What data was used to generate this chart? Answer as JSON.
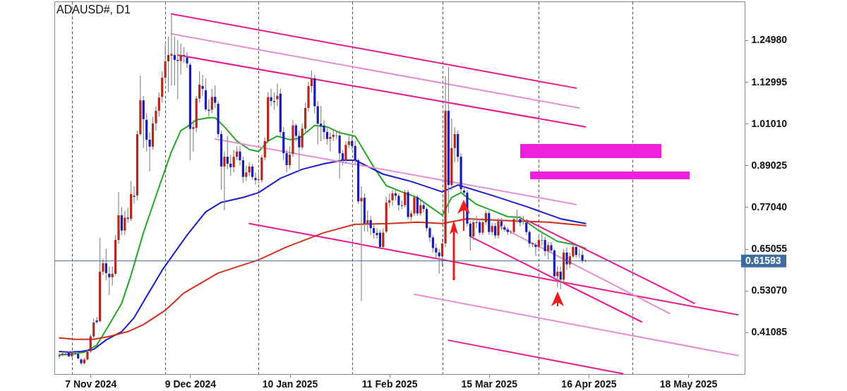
{
  "chart_data": {
    "type": "candlestick",
    "title": "ADAUSD#, D1",
    "x": [
      "2024-10-28",
      "2024-10-29",
      "2024-10-30",
      "2024-10-31",
      "2024-11-01",
      "2024-11-02",
      "2024-11-03",
      "2024-11-04",
      "2024-11-05",
      "2024-11-06",
      "2024-11-07",
      "2024-11-08",
      "2024-11-09",
      "2024-11-10",
      "2024-11-11",
      "2024-11-12",
      "2024-11-13",
      "2024-11-14",
      "2024-11-15",
      "2024-11-16",
      "2024-11-17",
      "2024-11-18",
      "2024-11-19",
      "2024-11-20",
      "2024-11-21",
      "2024-11-22",
      "2024-11-23",
      "2024-11-24",
      "2024-11-25",
      "2024-11-26",
      "2024-11-27",
      "2024-11-28",
      "2024-11-29",
      "2024-11-30",
      "2024-12-01",
      "2024-12-02",
      "2024-12-03",
      "2024-12-04",
      "2024-12-05",
      "2024-12-06",
      "2024-12-07",
      "2024-12-08",
      "2024-12-09",
      "2024-12-10",
      "2024-12-11",
      "2024-12-12",
      "2024-12-13",
      "2024-12-14",
      "2024-12-15",
      "2024-12-16",
      "2024-12-17",
      "2024-12-18",
      "2024-12-19",
      "2024-12-20",
      "2024-12-21",
      "2024-12-22",
      "2024-12-23",
      "2024-12-24",
      "2024-12-25",
      "2024-12-26",
      "2024-12-27",
      "2024-12-28",
      "2024-12-29",
      "2024-12-30",
      "2024-12-31",
      "2025-01-01",
      "2025-01-02",
      "2025-01-03",
      "2025-01-04",
      "2025-01-05",
      "2025-01-06",
      "2025-01-07",
      "2025-01-08",
      "2025-01-09",
      "2025-01-10",
      "2025-01-11",
      "2025-01-12",
      "2025-01-13",
      "2025-01-14",
      "2025-01-15",
      "2025-01-16",
      "2025-01-17",
      "2025-01-18",
      "2025-01-19",
      "2025-01-20",
      "2025-01-21",
      "2025-01-22",
      "2025-01-23",
      "2025-01-24",
      "2025-01-25",
      "2025-01-26",
      "2025-01-27",
      "2025-01-28",
      "2025-01-29",
      "2025-01-30",
      "2025-01-31",
      "2025-02-01",
      "2025-02-02",
      "2025-02-03",
      "2025-02-04",
      "2025-02-05",
      "2025-02-06",
      "2025-02-07",
      "2025-02-08",
      "2025-02-09",
      "2025-02-10",
      "2025-02-11",
      "2025-02-12",
      "2025-02-13",
      "2025-02-14",
      "2025-02-15",
      "2025-02-16",
      "2025-02-17",
      "2025-02-18",
      "2025-02-19",
      "2025-02-20",
      "2025-02-21",
      "2025-02-22",
      "2025-02-23",
      "2025-02-24",
      "2025-02-25",
      "2025-02-26",
      "2025-02-27",
      "2025-02-28",
      "2025-03-01",
      "2025-03-02",
      "2025-03-03",
      "2025-03-04",
      "2025-03-05",
      "2025-03-06",
      "2025-03-07",
      "2025-03-08",
      "2025-03-09",
      "2025-03-10",
      "2025-03-11",
      "2025-03-12",
      "2025-03-13",
      "2025-03-14",
      "2025-03-15",
      "2025-03-16",
      "2025-03-17",
      "2025-03-18",
      "2025-03-19",
      "2025-03-20",
      "2025-03-21",
      "2025-03-22",
      "2025-03-23",
      "2025-03-24",
      "2025-03-25",
      "2025-03-26",
      "2025-03-27",
      "2025-03-28",
      "2025-03-29",
      "2025-03-30",
      "2025-03-31",
      "2025-04-01",
      "2025-04-02",
      "2025-04-03",
      "2025-04-04",
      "2025-04-05",
      "2025-04-06",
      "2025-04-07",
      "2025-04-08",
      "2025-04-09",
      "2025-04-10",
      "2025-04-11",
      "2025-04-12",
      "2025-04-13",
      "2025-04-14",
      "2025-04-15"
    ],
    "ohlc": [
      [
        0.342,
        0.352,
        0.336,
        0.345
      ],
      [
        0.346,
        0.356,
        0.342,
        0.35
      ],
      [
        0.347,
        0.355,
        0.343,
        0.349
      ],
      [
        0.352,
        0.356,
        0.34,
        0.342
      ],
      [
        0.342,
        0.356,
        0.338,
        0.352
      ],
      [
        0.35,
        0.354,
        0.345,
        0.349
      ],
      [
        0.349,
        0.352,
        0.333,
        0.336
      ],
      [
        0.333,
        0.336,
        0.318,
        0.322
      ],
      [
        0.322,
        0.338,
        0.318,
        0.333
      ],
      [
        0.333,
        0.362,
        0.33,
        0.356
      ],
      [
        0.356,
        0.405,
        0.352,
        0.399
      ],
      [
        0.399,
        0.45,
        0.395,
        0.439
      ],
      [
        0.445,
        0.455,
        0.436,
        0.44
      ],
      [
        0.443,
        0.682,
        0.44,
        0.585
      ],
      [
        0.585,
        0.622,
        0.575,
        0.609
      ],
      [
        0.609,
        0.65,
        0.56,
        0.581
      ],
      [
        0.579,
        0.6,
        0.518,
        0.569
      ],
      [
        0.569,
        0.6,
        0.545,
        0.579
      ],
      [
        0.579,
        0.69,
        0.575,
        0.676
      ],
      [
        0.676,
        0.814,
        0.665,
        0.747
      ],
      [
        0.747,
        0.77,
        0.69,
        0.703
      ],
      [
        0.703,
        0.76,
        0.69,
        0.74
      ],
      [
        0.74,
        0.77,
        0.725,
        0.737
      ],
      [
        0.737,
        0.845,
        0.73,
        0.808
      ],
      [
        0.803,
        0.83,
        0.78,
        0.8
      ],
      [
        0.804,
        0.99,
        0.79,
        0.98
      ],
      [
        0.98,
        1.148,
        0.975,
        1.077
      ],
      [
        1.077,
        1.09,
        0.94,
        1.023
      ],
      [
        1.021,
        1.04,
        0.93,
        0.964
      ],
      [
        0.964,
        0.985,
        0.873,
        0.944
      ],
      [
        0.944,
        1.03,
        0.935,
        1.011
      ],
      [
        1.011,
        1.06,
        0.99,
        1.047
      ],
      [
        1.047,
        1.1,
        1.03,
        1.085
      ],
      [
        1.087,
        1.16,
        1.07,
        1.142
      ],
      [
        1.142,
        1.238,
        1.13,
        1.189
      ],
      [
        1.189,
        1.26,
        1.1,
        1.207
      ],
      [
        1.205,
        1.325,
        1.12,
        1.21
      ],
      [
        1.207,
        1.26,
        1.12,
        1.193
      ],
      [
        1.193,
        1.25,
        1.08,
        1.19
      ],
      [
        1.19,
        1.24,
        1.15,
        1.207
      ],
      [
        1.207,
        1.23,
        1.185,
        1.205
      ],
      [
        1.2,
        1.215,
        1.17,
        1.183
      ],
      [
        1.179,
        1.185,
        0.905,
        0.995
      ],
      [
        0.995,
        1.02,
        0.93,
        1.0
      ],
      [
        0.998,
        1.09,
        0.985,
        1.082
      ],
      [
        1.082,
        1.16,
        1.07,
        1.122
      ],
      [
        1.118,
        1.15,
        1.09,
        1.11
      ],
      [
        1.106,
        1.14,
        1.045,
        1.051
      ],
      [
        1.05,
        1.08,
        1.03,
        1.047
      ],
      [
        1.05,
        1.11,
        1.04,
        1.087
      ],
      [
        1.087,
        1.12,
        1.055,
        1.07
      ],
      [
        1.067,
        1.075,
        0.97,
        0.98
      ],
      [
        0.98,
        0.99,
        0.82,
        0.887
      ],
      [
        0.887,
        0.93,
        0.761,
        0.915
      ],
      [
        0.915,
        0.975,
        0.88,
        0.895
      ],
      [
        0.895,
        0.92,
        0.86,
        0.885
      ],
      [
        0.885,
        0.935,
        0.87,
        0.915
      ],
      [
        0.915,
        0.945,
        0.905,
        0.93
      ],
      [
        0.93,
        0.945,
        0.89,
        0.905
      ],
      [
        0.905,
        0.915,
        0.84,
        0.857
      ],
      [
        0.857,
        0.89,
        0.845,
        0.87
      ],
      [
        0.87,
        0.9,
        0.86,
        0.887
      ],
      [
        0.887,
        0.895,
        0.85,
        0.857
      ],
      [
        0.854,
        0.87,
        0.835,
        0.848
      ],
      [
        0.848,
        0.87,
        0.838,
        0.85
      ],
      [
        0.848,
        0.92,
        0.84,
        0.913
      ],
      [
        0.913,
        0.97,
        0.905,
        0.96
      ],
      [
        0.96,
        1.1,
        0.955,
        1.086
      ],
      [
        1.086,
        1.11,
        1.06,
        1.075
      ],
      [
        1.075,
        1.1,
        1.05,
        1.072
      ],
      [
        1.08,
        1.125,
        1.06,
        1.09
      ],
      [
        1.096,
        1.11,
        0.975,
        0.986
      ],
      [
        0.986,
        1.0,
        0.905,
        0.925
      ],
      [
        0.925,
        0.935,
        0.87,
        0.891
      ],
      [
        0.891,
        0.945,
        0.88,
        0.921
      ],
      [
        0.923,
        1.02,
        0.915,
        1.005
      ],
      [
        1.005,
        1.01,
        0.96,
        0.975
      ],
      [
        0.975,
        0.99,
        0.87,
        0.942
      ],
      [
        0.942,
        1.01,
        0.935,
        0.996
      ],
      [
        0.995,
        1.07,
        0.985,
        1.055
      ],
      [
        1.055,
        1.13,
        1.045,
        1.118
      ],
      [
        1.118,
        1.163,
        1.1,
        1.14
      ],
      [
        1.14,
        1.15,
        1.04,
        1.06
      ],
      [
        1.06,
        1.075,
        0.95,
        1.01
      ],
      [
        1.01,
        1.06,
        0.96,
        1.003
      ],
      [
        1.005,
        1.02,
        0.965,
        0.986
      ],
      [
        0.986,
        1.0,
        0.95,
        0.966
      ],
      [
        0.966,
        0.985,
        0.93,
        0.972
      ],
      [
        0.972,
        0.995,
        0.96,
        0.978
      ],
      [
        0.975,
        0.99,
        0.965,
        0.976
      ],
      [
        0.976,
        0.99,
        0.853,
        0.925
      ],
      [
        0.925,
        0.935,
        0.89,
        0.905
      ],
      [
        0.905,
        0.96,
        0.895,
        0.949
      ],
      [
        0.949,
        0.975,
        0.94,
        0.959
      ],
      [
        0.96,
        0.975,
        0.935,
        0.946
      ],
      [
        0.946,
        0.96,
        0.895,
        0.905
      ],
      [
        0.905,
        0.91,
        0.78,
        0.787
      ],
      [
        0.787,
        0.83,
        0.5,
        0.797
      ],
      [
        0.797,
        0.81,
        0.7,
        0.723
      ],
      [
        0.723,
        0.76,
        0.7,
        0.733
      ],
      [
        0.733,
        0.745,
        0.69,
        0.71
      ],
      [
        0.71,
        0.725,
        0.68,
        0.696
      ],
      [
        0.696,
        0.71,
        0.68,
        0.69
      ],
      [
        0.697,
        0.705,
        0.65,
        0.656
      ],
      [
        0.656,
        0.71,
        0.65,
        0.697
      ],
      [
        0.7,
        0.8,
        0.695,
        0.783
      ],
      [
        0.783,
        0.81,
        0.77,
        0.79
      ],
      [
        0.79,
        0.82,
        0.775,
        0.81
      ],
      [
        0.81,
        0.82,
        0.79,
        0.803
      ],
      [
        0.803,
        0.81,
        0.76,
        0.776
      ],
      [
        0.776,
        0.79,
        0.765,
        0.774
      ],
      [
        0.776,
        0.82,
        0.77,
        0.813
      ],
      [
        0.813,
        0.82,
        0.735,
        0.742
      ],
      [
        0.742,
        0.76,
        0.73,
        0.752
      ],
      [
        0.752,
        0.805,
        0.745,
        0.799
      ],
      [
        0.799,
        0.805,
        0.745,
        0.752
      ],
      [
        0.752,
        0.79,
        0.745,
        0.776
      ],
      [
        0.776,
        0.785,
        0.755,
        0.765
      ],
      [
        0.765,
        0.77,
        0.7,
        0.71
      ],
      [
        0.71,
        0.715,
        0.67,
        0.683
      ],
      [
        0.683,
        0.69,
        0.64,
        0.653
      ],
      [
        0.653,
        0.665,
        0.625,
        0.64
      ],
      [
        0.64,
        0.65,
        0.579,
        0.629
      ],
      [
        0.629,
        0.68,
        0.6,
        0.666
      ],
      [
        0.666,
        1.146,
        0.655,
        1.047
      ],
      [
        1.047,
        1.173,
        0.753,
        0.834
      ],
      [
        0.834,
        1.025,
        0.82,
        0.94
      ],
      [
        0.94,
        1.0,
        0.9,
        0.98
      ],
      [
        0.98,
        0.99,
        0.9,
        0.915
      ],
      [
        0.915,
        0.925,
        0.81,
        0.822
      ],
      [
        0.818,
        0.83,
        0.8,
        0.812
      ],
      [
        0.812,
        0.82,
        0.715,
        0.723
      ],
      [
        0.723,
        0.73,
        0.646,
        0.686
      ],
      [
        0.686,
        0.74,
        0.675,
        0.727
      ],
      [
        0.727,
        0.745,
        0.71,
        0.725
      ],
      [
        0.727,
        0.735,
        0.69,
        0.697
      ],
      [
        0.697,
        0.74,
        0.69,
        0.727
      ],
      [
        0.727,
        0.76,
        0.72,
        0.753
      ],
      [
        0.753,
        0.76,
        0.69,
        0.699
      ],
      [
        0.699,
        0.725,
        0.69,
        0.716
      ],
      [
        0.716,
        0.725,
        0.68,
        0.689
      ],
      [
        0.689,
        0.74,
        0.68,
        0.73
      ],
      [
        0.73,
        0.74,
        0.705,
        0.716
      ],
      [
        0.713,
        0.72,
        0.7,
        0.706
      ],
      [
        0.706,
        0.712,
        0.69,
        0.699
      ],
      [
        0.699,
        0.705,
        0.692,
        0.7
      ],
      [
        0.699,
        0.74,
        0.695,
        0.736
      ],
      [
        0.736,
        0.763,
        0.725,
        0.737
      ],
      [
        0.736,
        0.745,
        0.715,
        0.726
      ],
      [
        0.733,
        0.745,
        0.72,
        0.734
      ],
      [
        0.726,
        0.73,
        0.69,
        0.699
      ],
      [
        0.699,
        0.705,
        0.655,
        0.666
      ],
      [
        0.666,
        0.67,
        0.655,
        0.664
      ],
      [
        0.662,
        0.668,
        0.63,
        0.656
      ],
      [
        0.656,
        0.69,
        0.65,
        0.676
      ],
      [
        0.676,
        0.7,
        0.66,
        0.675
      ],
      [
        0.676,
        0.685,
        0.63,
        0.644
      ],
      [
        0.644,
        0.67,
        0.62,
        0.661
      ],
      [
        0.661,
        0.67,
        0.64,
        0.646
      ],
      [
        0.646,
        0.65,
        0.56,
        0.572
      ],
      [
        0.572,
        0.6,
        0.54,
        0.585
      ],
      [
        0.585,
        0.6,
        0.534,
        0.562
      ],
      [
        0.562,
        0.65,
        0.548,
        0.64
      ],
      [
        0.64,
        0.655,
        0.59,
        0.606
      ],
      [
        0.606,
        0.64,
        0.595,
        0.629
      ],
      [
        0.629,
        0.665,
        0.625,
        0.656
      ],
      [
        0.656,
        0.665,
        0.625,
        0.633
      ],
      [
        0.633,
        0.65,
        0.625,
        0.634
      ],
      [
        0.633,
        0.645,
        0.61,
        0.616
      ],
      [
        0.616,
        0.62,
        0.612,
        0.618
      ]
    ],
    "colors": [
      "#b3281c",
      "#b3281c",
      "#b3281c",
      "#1b1bb0",
      "#b3281c",
      "#1b1bb0",
      "#1b1bb0",
      "#1b1bb0",
      "#b3281c",
      "#b3281c",
      "#b3281c",
      "#b3281c",
      "#1b1bb0",
      "#b3281c",
      "#b3281c",
      "#1b1bb0",
      "#1b1bb0",
      "#b3281c",
      "#b3281c",
      "#b3281c",
      "#1b1bb0",
      "#b3281c",
      "#1b1bb0",
      "#b3281c",
      "#1b1bb0",
      "#b3281c",
      "#b3281c",
      "#1b1bb0",
      "#1b1bb0",
      "#1b1bb0",
      "#b3281c",
      "#b3281c",
      "#b3281c",
      "#b3281c",
      "#b3281c",
      "#b3281c",
      "#b3281c",
      "#1b1bb0",
      "#1b1bb0",
      "#b3281c",
      "#1b1bb0",
      "#1b1bb0",
      "#1b1bb0",
      "#b3281c",
      "#b3281c",
      "#b3281c",
      "#1b1bb0",
      "#1b1bb0",
      "#1b1bb0",
      "#b3281c",
      "#1b1bb0",
      "#1b1bb0",
      "#1b1bb0",
      "#b3281c",
      "#1b1bb0",
      "#1b1bb0",
      "#b3281c",
      "#b3281c",
      "#1b1bb0",
      "#1b1bb0",
      "#b3281c",
      "#b3281c",
      "#1b1bb0",
      "#1b1bb0",
      "#b3281c",
      "#b3281c",
      "#b3281c",
      "#b3281c",
      "#1b1bb0",
      "#1b1bb0",
      "#b3281c",
      "#1b1bb0",
      "#1b1bb0",
      "#1b1bb0",
      "#b3281c",
      "#b3281c",
      "#1b1bb0",
      "#1b1bb0",
      "#b3281c",
      "#b3281c",
      "#b3281c",
      "#b3281c",
      "#1b1bb0",
      "#1b1bb0",
      "#1b1bb0",
      "#1b1bb0",
      "#1b1bb0",
      "#b3281c",
      "#b3281c",
      "#b3281c",
      "#1b1bb0",
      "#1b1bb0",
      "#b3281c",
      "#b3281c",
      "#1b1bb0",
      "#1b1bb0",
      "#1b1bb0",
      "#b3281c",
      "#1b1bb0",
      "#b3281c",
      "#1b1bb0",
      "#1b1bb0",
      "#1b1bb0",
      "#1b1bb0",
      "#b3281c",
      "#b3281c",
      "#b3281c",
      "#b3281c",
      "#1b1bb0",
      "#1b1bb0",
      "#1b1bb0",
      "#b3281c",
      "#1b1bb0",
      "#b3281c",
      "#b3281c",
      "#1b1bb0",
      "#b3281c",
      "#1b1bb0",
      "#1b1bb0",
      "#1b1bb0",
      "#1b1bb0",
      "#1b1bb0",
      "#1b1bb0",
      "#b3281c",
      "#b3281c",
      "#1b1bb0",
      "#b3281c",
      "#b3281c",
      "#1b1bb0",
      "#1b1bb0",
      "#1b1bb0",
      "#1b1bb0",
      "#1b1bb0",
      "#b3281c",
      "#1b1bb0",
      "#1b1bb0",
      "#b3281c",
      "#b3281c",
      "#1b1bb0",
      "#b3281c",
      "#1b1bb0",
      "#b3281c",
      "#1b1bb0",
      "#1b1bb0",
      "#1b1bb0",
      "#b3281c",
      "#b3281c",
      "#b3281c",
      "#1b1bb0",
      "#b3281c",
      "#1b1bb0",
      "#1b1bb0",
      "#1b1bb0",
      "#1b1bb0",
      "#b3281c",
      "#1b1bb0",
      "#1b1bb0",
      "#b3281c",
      "#1b1bb0",
      "#1b1bb0",
      "#b3281c",
      "#1b1bb0",
      "#b3281c",
      "#1b1bb0",
      "#b3281c",
      "#b3281c",
      "#1b1bb0",
      "#b3281c",
      "#1b1bb0",
      "#b3281c"
    ],
    "series": [
      {
        "type": "line",
        "color": "#22a822",
        "x": [
          "2024-10-28",
          "2024-11-01",
          "2024-11-05",
          "2024-11-09",
          "2024-11-13",
          "2024-11-17",
          "2024-11-20",
          "2024-11-24",
          "2024-11-29",
          "2024-12-03",
          "2024-12-06",
          "2024-12-08",
          "2024-12-11",
          "2024-12-15",
          "2024-12-17",
          "2024-12-20",
          "2024-12-24",
          "2024-12-28",
          "2024-12-31",
          "2025-01-03",
          "2025-01-06",
          "2025-01-10",
          "2025-01-13",
          "2025-01-18",
          "2025-01-22",
          "2025-01-26",
          "2025-01-31",
          "2025-02-03",
          "2025-02-06",
          "2025-02-10",
          "2025-02-15",
          "2025-02-20",
          "2025-02-24",
          "2025-02-28",
          "2025-03-03",
          "2025-03-06",
          "2025-03-11",
          "2025-03-16",
          "2025-03-21",
          "2025-03-25",
          "2025-03-31",
          "2025-04-06",
          "2025-04-12",
          "2025-04-15"
        ],
        "values": [
          0.346,
          0.348,
          0.354,
          0.374,
          0.433,
          0.494,
          0.575,
          0.697,
          0.828,
          0.93,
          0.99,
          1.001,
          1.021,
          1.027,
          1.027,
          1.001,
          0.96,
          0.936,
          0.93,
          0.96,
          0.974,
          0.964,
          0.968,
          1.005,
          1.001,
          0.984,
          0.974,
          0.93,
          0.885,
          0.832,
          0.814,
          0.798,
          0.772,
          0.747,
          0.798,
          0.812,
          0.778,
          0.761,
          0.743,
          0.741,
          0.703,
          0.672,
          0.662,
          0.652
        ]
      },
      {
        "type": "line",
        "color": "#1a1ac8",
        "x": [
          "2024-10-28",
          "2024-10-31",
          "2024-11-04",
          "2024-11-08",
          "2024-11-12",
          "2024-11-17",
          "2024-11-21",
          "2024-11-25",
          "2024-11-30",
          "2024-12-08",
          "2024-12-14",
          "2024-12-19",
          "2024-12-26",
          "2024-12-31",
          "2025-01-07",
          "2025-01-14",
          "2025-01-21",
          "2025-01-27",
          "2025-01-31",
          "2025-02-09",
          "2025-02-18",
          "2025-02-28",
          "2025-03-05",
          "2025-03-16",
          "2025-03-27",
          "2025-04-07",
          "2025-04-15"
        ],
        "values": [
          0.356,
          0.354,
          0.356,
          0.362,
          0.389,
          0.413,
          0.453,
          0.514,
          0.589,
          0.69,
          0.757,
          0.784,
          0.798,
          0.812,
          0.853,
          0.879,
          0.895,
          0.905,
          0.905,
          0.865,
          0.844,
          0.814,
          0.834,
          0.804,
          0.772,
          0.737,
          0.723
        ]
      },
      {
        "type": "line",
        "color": "#d0301a",
        "x": [
          "2024-10-28",
          "2024-11-02",
          "2024-11-08",
          "2024-11-13",
          "2024-11-19",
          "2024-11-24",
          "2024-12-01",
          "2024-12-07",
          "2024-12-18",
          "2024-12-31",
          "2025-01-09",
          "2025-01-21",
          "2025-01-31",
          "2025-02-11",
          "2025-02-20",
          "2025-02-28",
          "2025-03-08",
          "2025-03-23",
          "2025-04-03",
          "2025-04-15"
        ],
        "values": [
          0.395,
          0.391,
          0.391,
          0.399,
          0.413,
          0.433,
          0.474,
          0.524,
          0.581,
          0.619,
          0.656,
          0.697,
          0.721,
          0.723,
          0.727,
          0.723,
          0.737,
          0.731,
          0.727,
          0.717
        ]
      },
      {
        "type": "line",
        "color": "#e8198c",
        "x": [
          "2024-12-03",
          "2025-04-12"
        ],
        "values": [
          1.325,
          1.112
        ]
      },
      {
        "type": "line",
        "color": "#e48fd2",
        "x": [
          "2024-12-03",
          "2025-04-13"
        ],
        "values": [
          1.268,
          1.055
        ]
      },
      {
        "type": "line",
        "color": "#e8198c",
        "x": [
          "2024-12-05",
          "2025-04-15"
        ],
        "values": [
          1.207,
          1.001
        ]
      },
      {
        "type": "line",
        "color": "#e48fd2",
        "x": [
          "2024-12-17",
          "2025-04-12"
        ],
        "values": [
          0.966,
          0.778
        ]
      },
      {
        "type": "line",
        "color": "#e8198c",
        "x": [
          "2024-12-28",
          "2025-06-03"
        ],
        "values": [
          0.723,
          0.461
        ]
      },
      {
        "type": "line",
        "color": "#e8198c",
        "x": [
          "2025-03-09",
          "2025-05-03"
        ],
        "values": [
          0.686,
          0.441
        ]
      },
      {
        "type": "line",
        "color": "#e8198c",
        "x": [
          "2025-03-27",
          "2025-05-20"
        ],
        "values": [
          0.733,
          0.494
        ]
      },
      {
        "type": "line",
        "color": "#e48fd2",
        "x": [
          "2025-03-18",
          "2025-05-12"
        ],
        "values": [
          0.717,
          0.465
        ]
      },
      {
        "type": "line",
        "color": "#e48fd2",
        "x": [
          "2025-02-19",
          "2025-06-03"
        ],
        "values": [
          0.52,
          0.344
        ]
      },
      {
        "type": "line",
        "color": "#e8198c",
        "x": [
          "2025-03-02",
          "2025-04-27"
        ],
        "values": [
          0.388,
          0.292
        ]
      }
    ],
    "ref_lines": [
      {
        "axis": "y",
        "value": 0.61593,
        "label": "0.61593",
        "color": "#3d6d9e"
      }
    ],
    "xlim": [
      "2024-10-27T12:00",
      "2025-06-04"
    ],
    "ylim": [
      0.291,
      1.361
    ],
    "xticks": [
      {
        "value": "2024-11-07",
        "label": "7 Nov 2024"
      },
      {
        "value": "2024-12-09",
        "label": "9 Dec 2024"
      },
      {
        "value": "2025-01-10",
        "label": "10 Jan 2025"
      },
      {
        "value": "2025-02-11",
        "label": "11 Feb 2025"
      },
      {
        "value": "2025-03-15",
        "label": "15 Mar 2025"
      },
      {
        "value": "2025-04-16",
        "label": "16 Apr 2025"
      },
      {
        "value": "2025-05-18",
        "label": "18 May 2025"
      },
      {
        "value": "2024-11-01",
        "label": null
      },
      {
        "value": "2024-12-01",
        "label": null
      },
      {
        "value": "2024-12-31",
        "label": null
      },
      {
        "value": "2025-01-30",
        "label": null
      },
      {
        "value": "2025-02-28",
        "label": null
      },
      {
        "value": "2025-03-31",
        "label": null
      },
      {
        "value": "2025-04-30",
        "label": null
      }
    ],
    "yticks": [
      {
        "value": 0.41085,
        "label": "0.41085"
      },
      {
        "value": 0.5307,
        "label": "0.53070"
      },
      {
        "value": 0.65055,
        "label": "0.65055"
      },
      {
        "value": 0.7704,
        "label": "0.77040"
      },
      {
        "value": 0.89025,
        "label": "0.89025"
      },
      {
        "value": 1.0101,
        "label": "1.01010"
      },
      {
        "value": 1.12995,
        "label": "1.12995"
      },
      {
        "value": 1.2498,
        "label": "1.24980"
      }
    ],
    "grid": "x"
  }
}
